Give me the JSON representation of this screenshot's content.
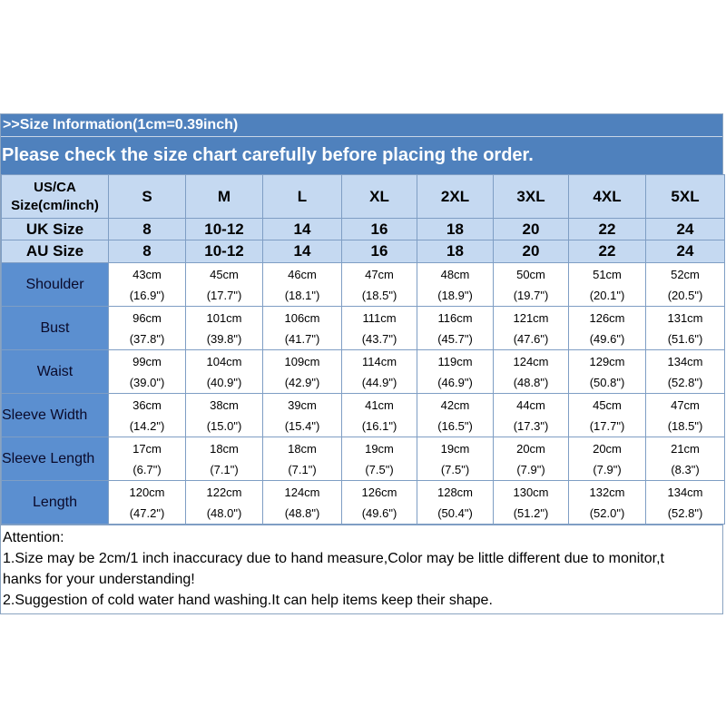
{
  "header": {
    "title": ">>Size Information(1cm=0.39inch)",
    "subtitle": "Please check the size chart carefully before placing the order."
  },
  "table": {
    "us_label": "US/CA\nSize(cm/inch)",
    "us_sizes": [
      "S",
      "M",
      "L",
      "XL",
      "2XL",
      "3XL",
      "4XL",
      "5XL"
    ],
    "uk_label": "UK Size",
    "uk_sizes": [
      "8",
      "10-12",
      "14",
      "16",
      "18",
      "20",
      "22",
      "24"
    ],
    "au_label": "AU  Size",
    "au_sizes": [
      "8",
      "10-12",
      "14",
      "16",
      "18",
      "20",
      "22",
      "24"
    ],
    "measurements": [
      {
        "label": "Shoulder",
        "cm": [
          "43cm",
          "45cm",
          "46cm",
          "47cm",
          "48cm",
          "50cm",
          "51cm",
          "52cm"
        ],
        "inch": [
          "(16.9\")",
          "(17.7\")",
          "(18.1\")",
          "(18.5\")",
          "(18.9\")",
          "(19.7\")",
          "(20.1\")",
          "(20.5\")"
        ]
      },
      {
        "label": "Bust",
        "cm": [
          "96cm",
          "101cm",
          "106cm",
          "111cm",
          "116cm",
          "121cm",
          "126cm",
          "131cm"
        ],
        "inch": [
          "(37.8\")",
          "(39.8\")",
          "(41.7\")",
          "(43.7\")",
          "(45.7\")",
          "(47.6\")",
          "(49.6\")",
          "(51.6\")"
        ]
      },
      {
        "label": "Waist",
        "cm": [
          "99cm",
          "104cm",
          "109cm",
          "114cm",
          "119cm",
          "124cm",
          "129cm",
          "134cm"
        ],
        "inch": [
          "(39.0\")",
          "(40.9\")",
          "(42.9\")",
          "(44.9\")",
          "(46.9\")",
          "(48.8\")",
          "(50.8\")",
          "(52.8\")"
        ]
      },
      {
        "label": "Sleeve Width",
        "cm": [
          "36cm",
          "38cm",
          "39cm",
          "41cm",
          "42cm",
          "44cm",
          "45cm",
          "47cm"
        ],
        "inch": [
          "(14.2\")",
          "(15.0\")",
          "(15.4\")",
          "(16.1\")",
          "(16.5\")",
          "(17.3\")",
          "(17.7\")",
          "(18.5\")"
        ]
      },
      {
        "label": "Sleeve Length",
        "cm": [
          "17cm",
          "18cm",
          "18cm",
          "19cm",
          "19cm",
          "20cm",
          "20cm",
          "21cm"
        ],
        "inch": [
          "(6.7\")",
          "(7.1\")",
          "(7.1\")",
          "(7.5\")",
          "(7.5\")",
          "(7.9\")",
          "(7.9\")",
          "(8.3\")"
        ]
      },
      {
        "label": "Length",
        "cm": [
          "120cm",
          "122cm",
          "124cm",
          "126cm",
          "128cm",
          "130cm",
          "132cm",
          "134cm"
        ],
        "inch": [
          "(47.2\")",
          "(48.0\")",
          "(48.8\")",
          "(49.6\")",
          "(50.4\")",
          "(51.2\")",
          "(52.0\")",
          "(52.8\")"
        ]
      }
    ]
  },
  "notes": {
    "heading": "Attention:",
    "line1": "1.Size may be 2cm/1 inch inaccuracy due to hand measure,Color may be little different due to monitor,t",
    "line1b": "hanks for your understanding!",
    "line2": "2.Suggestion of cold water hand washing.It can help items keep their shape."
  },
  "colors": {
    "header_blue": "#4f81bd",
    "size_row_bg": "#c5d9f1",
    "measure_label_bg": "#5b8fd0"
  }
}
